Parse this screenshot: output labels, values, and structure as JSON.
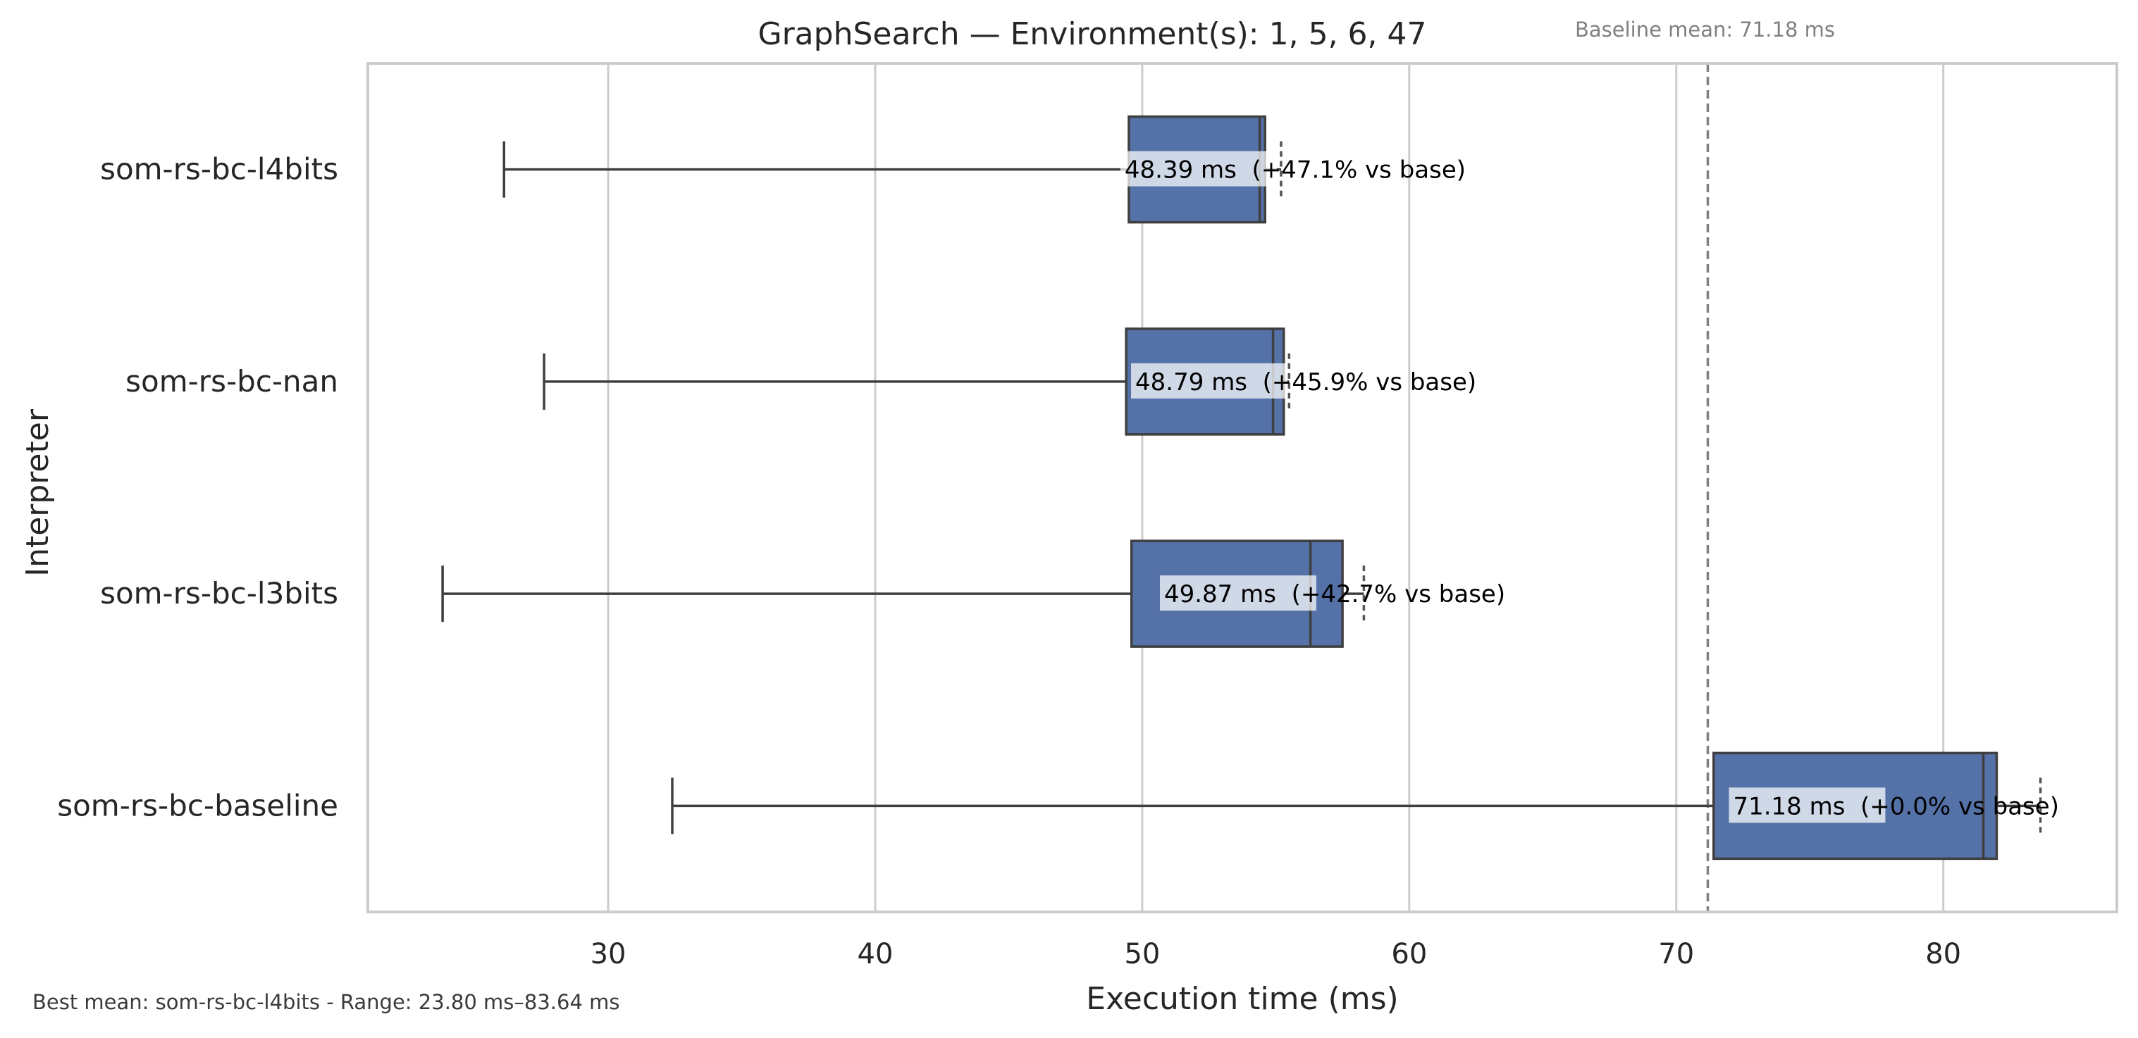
{
  "chart_data": {
    "type": "box",
    "orientation": "horizontal",
    "title": "GraphSearch — Environment(s): 1, 5, 6, 47",
    "xlabel": "Execution time (ms)",
    "ylabel": "Interpreter",
    "xlim": [
      21,
      86.5
    ],
    "xticks": [
      30,
      40,
      50,
      60,
      70,
      80
    ],
    "grid": "vertical",
    "box_color": "#5572a8",
    "baseline": {
      "value": 71.18,
      "label": "Baseline mean: 71.18 ms"
    },
    "categories": [
      "som-rs-bc-l4bits",
      "som-rs-bc-nan",
      "som-rs-bc-l3bits",
      "som-rs-bc-baseline"
    ],
    "boxes": [
      {
        "name": "som-rs-bc-l4bits",
        "whisker_low": 26.1,
        "q1": 49.5,
        "median": 54.4,
        "q3": 54.6,
        "whisker_high": 55.2,
        "mean_label": "48.39 ms",
        "pct_label": "(+47.1% vs base)",
        "mean": 48.39
      },
      {
        "name": "som-rs-bc-nan",
        "whisker_low": 27.6,
        "q1": 49.4,
        "median": 54.9,
        "q3": 55.3,
        "whisker_high": 55.5,
        "mean_label": "48.79 ms",
        "pct_label": "(+45.9% vs base)",
        "mean": 48.79
      },
      {
        "name": "som-rs-bc-l3bits",
        "whisker_low": 23.8,
        "q1": 49.6,
        "median": 56.3,
        "q3": 57.5,
        "whisker_high": 58.3,
        "mean_label": "49.87 ms",
        "pct_label": "(+42.7% vs base)",
        "mean": 49.87
      },
      {
        "name": "som-rs-bc-baseline",
        "whisker_low": 32.4,
        "q1": 71.4,
        "median": 81.5,
        "q3": 82.0,
        "whisker_high": 83.64,
        "mean_label": "71.18 ms",
        "pct_label": "(+0.0% vs base)",
        "mean": 71.18
      }
    ],
    "footer": "Best mean: som-rs-bc-l4bits - Range: 23.80 ms–83.64 ms"
  }
}
